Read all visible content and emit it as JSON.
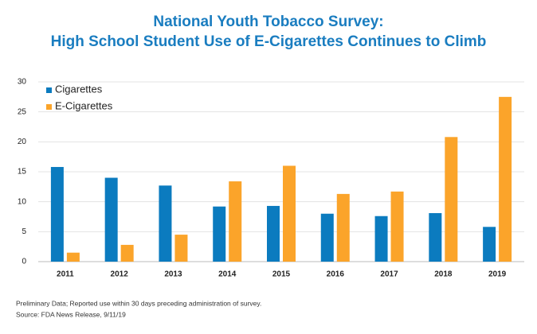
{
  "chart_data": {
    "type": "bar",
    "title": [
      "National Youth Tobacco Survey:",
      "High School Student Use of E-Cigarettes Continues to Climb"
    ],
    "categories": [
      "2011",
      "2012",
      "2013",
      "2014",
      "2015",
      "2016",
      "2017",
      "2018",
      "2019"
    ],
    "series": [
      {
        "name": "Cigarettes",
        "color": "#0b7bbf",
        "values": [
          15.8,
          14.0,
          12.7,
          9.2,
          9.3,
          8.0,
          7.6,
          8.1,
          5.8
        ]
      },
      {
        "name": "E-Cigarettes",
        "color": "#fba42a",
        "values": [
          1.5,
          2.8,
          4.5,
          13.4,
          16.0,
          11.3,
          11.7,
          20.8,
          27.5
        ]
      }
    ],
    "ylim": [
      0,
      30
    ],
    "yticks": [
      0,
      5,
      10,
      15,
      20,
      25,
      30
    ],
    "grid": true,
    "legend": "top-left",
    "notes": [
      "Preliminary Data; Reported use within 30 days preceding administration of survey.",
      "Source: FDA News Release, 9/11/19"
    ]
  }
}
